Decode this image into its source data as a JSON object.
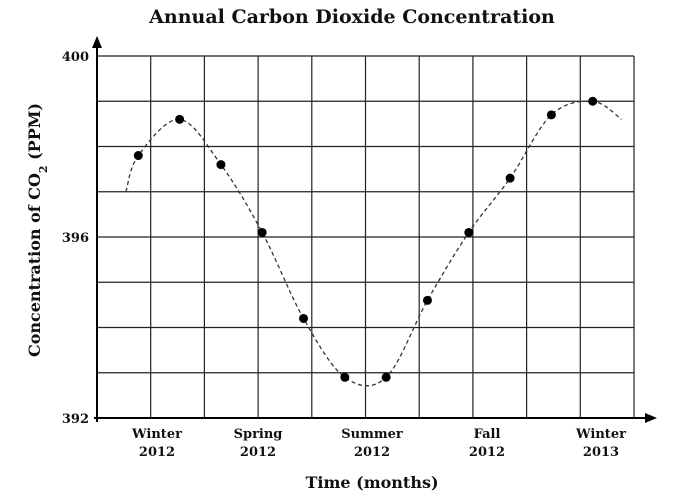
{
  "chart_data": {
    "type": "scatter",
    "title": "Annual Carbon Dioxide Concentration",
    "xlabel": "Time (months)",
    "ylabel_main": "Concentration of CO",
    "ylabel_sub": "2",
    "ylabel_tail": " (PPM)",
    "ylim": [
      392,
      400
    ],
    "y_ticks": [
      392,
      396,
      400
    ],
    "grid": true,
    "x_ticks": [
      {
        "line1": "Winter",
        "line2": "2012",
        "month": 1
      },
      {
        "line1": "Spring",
        "line2": "2012",
        "month": 4
      },
      {
        "line1": "Summer",
        "line2": "2012",
        "month": 7
      },
      {
        "line1": "Fall",
        "line2": "2012",
        "month": 10
      },
      {
        "line1": "Winter",
        "line2": "2013",
        "month": 13
      }
    ],
    "points": [
      {
        "x": 1,
        "y": 397.8
      },
      {
        "x": 2,
        "y": 398.6
      },
      {
        "x": 3,
        "y": 397.6
      },
      {
        "x": 4,
        "y": 396.1
      },
      {
        "x": 5,
        "y": 394.2
      },
      {
        "x": 6,
        "y": 392.9
      },
      {
        "x": 7,
        "y": 392.9
      },
      {
        "x": 8,
        "y": 394.6
      },
      {
        "x": 9,
        "y": 396.1
      },
      {
        "x": 10,
        "y": 397.3
      },
      {
        "x": 11,
        "y": 398.7
      },
      {
        "x": 12,
        "y": 399.0
      }
    ],
    "curve_start": {
      "x": 0.7,
      "y": 397.0
    },
    "curve_end": {
      "x": 12.7,
      "y": 398.6
    }
  }
}
